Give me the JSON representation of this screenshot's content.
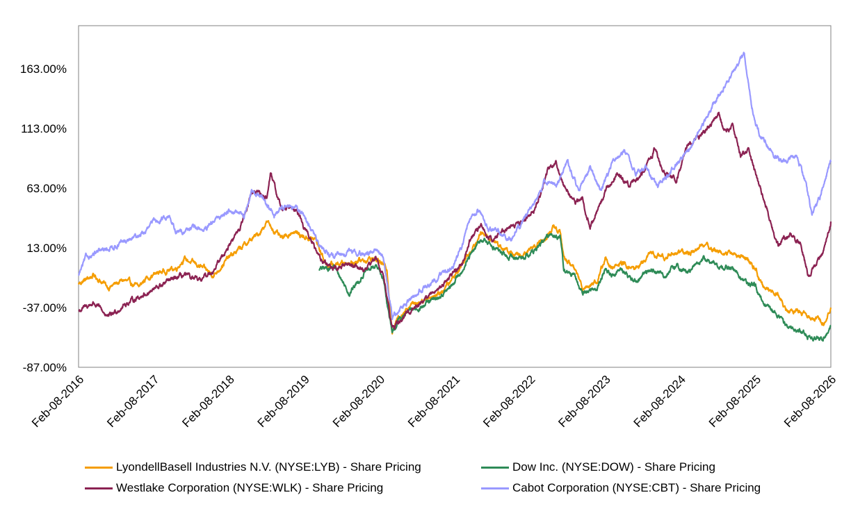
{
  "chart_data": {
    "type": "line",
    "title": "",
    "xlabel": "",
    "ylabel": "",
    "ylim": [
      -87,
      199
    ],
    "yticks": [
      "163.00%",
      "113.00%",
      "63.00%",
      "13.00%",
      "-37.00%",
      "-87.00%"
    ],
    "ytick_values": [
      163,
      113,
      63,
      13,
      -37,
      -87
    ],
    "x_start": 2016.0,
    "x_end": 2026.0,
    "xticks": [
      "Feb-08-2016",
      "Feb-08-2017",
      "Feb-08-2018",
      "Feb-08-2019",
      "Feb-08-2020",
      "Feb-08-2021",
      "Feb-08-2022",
      "Feb-08-2023",
      "Feb-08-2024",
      "Feb-08-2025",
      "Feb-08-2026"
    ],
    "xtick_values": [
      2016,
      2017,
      2018,
      2019,
      2020,
      2021,
      2022,
      2023,
      2024,
      2025,
      2026
    ],
    "series": [
      {
        "name": "LyondellBasell Industries N.V. (NYSE:LYB) - Share Pricing",
        "color": "#F59D00",
        "points": [
          [
            2016.0,
            -17
          ],
          [
            2016.2,
            -10
          ],
          [
            2016.4,
            -20
          ],
          [
            2016.6,
            -14
          ],
          [
            2016.8,
            -20
          ],
          [
            2016.9,
            -12
          ],
          [
            2017.1,
            -7
          ],
          [
            2017.3,
            -4
          ],
          [
            2017.4,
            4
          ],
          [
            2017.6,
            -2
          ],
          [
            2017.8,
            -10
          ],
          [
            2017.9,
            -2
          ],
          [
            2018.0,
            5
          ],
          [
            2018.2,
            15
          ],
          [
            2018.4,
            25
          ],
          [
            2018.5,
            35
          ],
          [
            2018.7,
            20
          ],
          [
            2018.85,
            27
          ],
          [
            2019.0,
            22
          ],
          [
            2019.15,
            20
          ],
          [
            2019.3,
            -2
          ],
          [
            2019.5,
            0
          ],
          [
            2019.7,
            2
          ],
          [
            2019.9,
            4
          ],
          [
            2020.0,
            2
          ],
          [
            2020.1,
            -5
          ],
          [
            2020.17,
            -58
          ],
          [
            2020.25,
            -45
          ],
          [
            2020.4,
            -35
          ],
          [
            2020.6,
            -30
          ],
          [
            2020.8,
            -25
          ],
          [
            2020.95,
            -15
          ],
          [
            2021.1,
            0
          ],
          [
            2021.2,
            10
          ],
          [
            2021.35,
            25
          ],
          [
            2021.5,
            20
          ],
          [
            2021.7,
            10
          ],
          [
            2021.9,
            5
          ],
          [
            2022.05,
            15
          ],
          [
            2022.2,
            20
          ],
          [
            2022.3,
            30
          ],
          [
            2022.4,
            27
          ],
          [
            2022.45,
            5
          ],
          [
            2022.6,
            -5
          ],
          [
            2022.7,
            -20
          ],
          [
            2022.9,
            -15
          ],
          [
            2023.0,
            5
          ],
          [
            2023.1,
            -5
          ],
          [
            2023.2,
            0
          ],
          [
            2023.4,
            -5
          ],
          [
            2023.6,
            8
          ],
          [
            2023.8,
            5
          ],
          [
            2023.95,
            10
          ],
          [
            2024.1,
            8
          ],
          [
            2024.3,
            16
          ],
          [
            2024.5,
            10
          ],
          [
            2024.7,
            8
          ],
          [
            2024.85,
            5
          ],
          [
            2025.0,
            -5
          ],
          [
            2025.1,
            -20
          ],
          [
            2025.3,
            -25
          ],
          [
            2025.4,
            -40
          ],
          [
            2025.6,
            -40
          ],
          [
            2025.75,
            -45
          ],
          [
            2025.9,
            -50
          ],
          [
            2026.0,
            -37
          ]
        ]
      },
      {
        "name": "Dow Inc. (NYSE:DOW) - Share Pricing",
        "color": "#2E8B57",
        "points": [
          [
            2019.2,
            -5
          ],
          [
            2019.4,
            -3
          ],
          [
            2019.6,
            -25
          ],
          [
            2019.8,
            -8
          ],
          [
            2019.95,
            -2
          ],
          [
            2020.05,
            -12
          ],
          [
            2020.17,
            -60
          ],
          [
            2020.25,
            -48
          ],
          [
            2020.4,
            -40
          ],
          [
            2020.6,
            -35
          ],
          [
            2020.8,
            -28
          ],
          [
            2020.95,
            -20
          ],
          [
            2021.1,
            -5
          ],
          [
            2021.2,
            5
          ],
          [
            2021.35,
            20
          ],
          [
            2021.5,
            15
          ],
          [
            2021.7,
            5
          ],
          [
            2021.9,
            5
          ],
          [
            2022.05,
            10
          ],
          [
            2022.2,
            20
          ],
          [
            2022.3,
            25
          ],
          [
            2022.4,
            22
          ],
          [
            2022.45,
            -5
          ],
          [
            2022.6,
            -12
          ],
          [
            2022.7,
            -25
          ],
          [
            2022.9,
            -20
          ],
          [
            2023.0,
            -5
          ],
          [
            2023.1,
            -10
          ],
          [
            2023.2,
            -5
          ],
          [
            2023.4,
            -15
          ],
          [
            2023.6,
            -5
          ],
          [
            2023.8,
            -10
          ],
          [
            2023.95,
            -2
          ],
          [
            2024.1,
            -8
          ],
          [
            2024.3,
            4
          ],
          [
            2024.5,
            -2
          ],
          [
            2024.7,
            -5
          ],
          [
            2024.85,
            -15
          ],
          [
            2025.0,
            -20
          ],
          [
            2025.1,
            -35
          ],
          [
            2025.3,
            -42
          ],
          [
            2025.4,
            -52
          ],
          [
            2025.6,
            -57
          ],
          [
            2025.75,
            -63
          ],
          [
            2025.9,
            -62
          ],
          [
            2026.0,
            -52
          ]
        ]
      },
      {
        "name": "Westlake Corporation (NYSE:WLK) - Share Pricing",
        "color": "#8B2252",
        "points": [
          [
            2016.0,
            -40
          ],
          [
            2016.2,
            -33
          ],
          [
            2016.4,
            -45
          ],
          [
            2016.6,
            -35
          ],
          [
            2016.8,
            -28
          ],
          [
            2017.0,
            -22
          ],
          [
            2017.2,
            -15
          ],
          [
            2017.4,
            -10
          ],
          [
            2017.6,
            -15
          ],
          [
            2017.8,
            -5
          ],
          [
            2018.0,
            15
          ],
          [
            2018.15,
            30
          ],
          [
            2018.3,
            60
          ],
          [
            2018.5,
            55
          ],
          [
            2018.55,
            75
          ],
          [
            2018.7,
            45
          ],
          [
            2018.85,
            50
          ],
          [
            2019.0,
            30
          ],
          [
            2019.2,
            5
          ],
          [
            2019.4,
            -5
          ],
          [
            2019.6,
            0
          ],
          [
            2019.8,
            -5
          ],
          [
            2019.95,
            5
          ],
          [
            2020.05,
            -10
          ],
          [
            2020.17,
            -55
          ],
          [
            2020.25,
            -50
          ],
          [
            2020.4,
            -40
          ],
          [
            2020.6,
            -30
          ],
          [
            2020.8,
            -20
          ],
          [
            2020.95,
            -10
          ],
          [
            2021.1,
            0
          ],
          [
            2021.2,
            20
          ],
          [
            2021.35,
            30
          ],
          [
            2021.5,
            20
          ],
          [
            2021.7,
            30
          ],
          [
            2021.9,
            35
          ],
          [
            2022.05,
            45
          ],
          [
            2022.15,
            60
          ],
          [
            2022.25,
            80
          ],
          [
            2022.35,
            85
          ],
          [
            2022.45,
            65
          ],
          [
            2022.6,
            50
          ],
          [
            2022.7,
            55
          ],
          [
            2022.8,
            30
          ],
          [
            2022.9,
            45
          ],
          [
            2023.0,
            60
          ],
          [
            2023.15,
            75
          ],
          [
            2023.3,
            65
          ],
          [
            2023.5,
            75
          ],
          [
            2023.65,
            95
          ],
          [
            2023.8,
            75
          ],
          [
            2023.95,
            70
          ],
          [
            2024.1,
            100
          ],
          [
            2024.25,
            105
          ],
          [
            2024.4,
            115
          ],
          [
            2024.5,
            125
          ],
          [
            2024.6,
            110
          ],
          [
            2024.7,
            115
          ],
          [
            2024.8,
            90
          ],
          [
            2024.9,
            95
          ],
          [
            2025.0,
            75
          ],
          [
            2025.1,
            55
          ],
          [
            2025.2,
            35
          ],
          [
            2025.3,
            15
          ],
          [
            2025.45,
            25
          ],
          [
            2025.6,
            15
          ],
          [
            2025.7,
            -10
          ],
          [
            2025.8,
            0
          ],
          [
            2025.9,
            10
          ],
          [
            2026.0,
            35
          ]
        ]
      },
      {
        "name": "Cabot Corporation (NYSE:CBT) - Share Pricing",
        "color": "#9999FF",
        "points": [
          [
            2016.0,
            -10
          ],
          [
            2016.1,
            5
          ],
          [
            2016.3,
            10
          ],
          [
            2016.5,
            15
          ],
          [
            2016.7,
            20
          ],
          [
            2016.9,
            27
          ],
          [
            2017.0,
            35
          ],
          [
            2017.2,
            40
          ],
          [
            2017.3,
            25
          ],
          [
            2017.5,
            30
          ],
          [
            2017.7,
            28
          ],
          [
            2017.8,
            35
          ],
          [
            2018.0,
            45
          ],
          [
            2018.2,
            40
          ],
          [
            2018.3,
            60
          ],
          [
            2018.45,
            55
          ],
          [
            2018.6,
            40
          ],
          [
            2018.75,
            50
          ],
          [
            2018.9,
            45
          ],
          [
            2019.0,
            40
          ],
          [
            2019.2,
            15
          ],
          [
            2019.4,
            5
          ],
          [
            2019.6,
            10
          ],
          [
            2019.8,
            7
          ],
          [
            2019.95,
            12
          ],
          [
            2020.05,
            5
          ],
          [
            2020.17,
            -45
          ],
          [
            2020.25,
            -40
          ],
          [
            2020.4,
            -30
          ],
          [
            2020.6,
            -20
          ],
          [
            2020.8,
            -10
          ],
          [
            2020.95,
            -5
          ],
          [
            2021.1,
            15
          ],
          [
            2021.2,
            35
          ],
          [
            2021.3,
            45
          ],
          [
            2021.45,
            30
          ],
          [
            2021.6,
            25
          ],
          [
            2021.75,
            20
          ],
          [
            2021.9,
            35
          ],
          [
            2022.05,
            50
          ],
          [
            2022.2,
            70
          ],
          [
            2022.35,
            65
          ],
          [
            2022.5,
            85
          ],
          [
            2022.65,
            60
          ],
          [
            2022.8,
            80
          ],
          [
            2022.95,
            60
          ],
          [
            2023.1,
            85
          ],
          [
            2023.25,
            95
          ],
          [
            2023.4,
            75
          ],
          [
            2023.55,
            80
          ],
          [
            2023.7,
            65
          ],
          [
            2023.85,
            75
          ],
          [
            2024.0,
            85
          ],
          [
            2024.15,
            100
          ],
          [
            2024.3,
            115
          ],
          [
            2024.45,
            135
          ],
          [
            2024.6,
            150
          ],
          [
            2024.75,
            165
          ],
          [
            2024.85,
            175
          ],
          [
            2024.95,
            130
          ],
          [
            2025.05,
            110
          ],
          [
            2025.15,
            100
          ],
          [
            2025.25,
            90
          ],
          [
            2025.4,
            85
          ],
          [
            2025.55,
            90
          ],
          [
            2025.65,
            70
          ],
          [
            2025.75,
            40
          ],
          [
            2025.85,
            55
          ],
          [
            2025.95,
            75
          ],
          [
            2026.0,
            85
          ]
        ]
      }
    ]
  }
}
